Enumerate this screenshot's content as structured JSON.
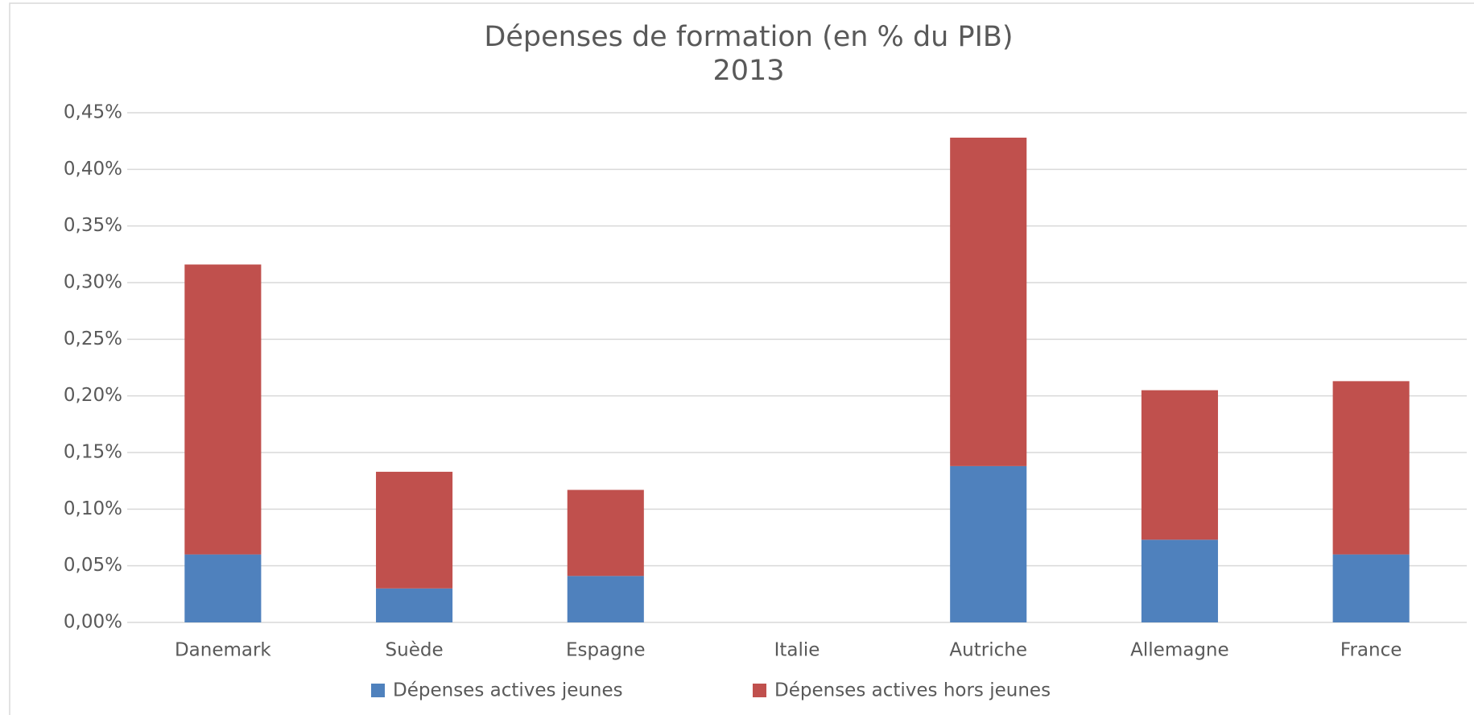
{
  "chart_data": {
    "type": "stacked_bar",
    "title": "Dépenses de formation (en % du PIB)",
    "subtitle": "2013",
    "categories": [
      "Danemark",
      "Suède",
      "Espagne",
      "Italie",
      "Autriche",
      "Allemagne",
      "France"
    ],
    "series": [
      {
        "name": "Dépenses actives jeunes",
        "color": "#4f81bd",
        "values": [
          0.06,
          0.03,
          0.041,
          null,
          0.138,
          0.073,
          0.06
        ]
      },
      {
        "name": "Dépenses actives hors jeunes",
        "color": "#c0504d",
        "values": [
          0.256,
          0.103,
          0.076,
          null,
          0.29,
          0.132,
          0.153
        ]
      }
    ],
    "ylim": [
      0,
      0.45
    ],
    "yticks": [
      {
        "value": 0,
        "label": "0,00%"
      },
      {
        "value": 0.05,
        "label": "0,05%"
      },
      {
        "value": 0.1,
        "label": "0,10%"
      },
      {
        "value": 0.15,
        "label": "0,15%"
      },
      {
        "value": 0.2,
        "label": "0,20%"
      },
      {
        "value": 0.25,
        "label": "0,25%"
      },
      {
        "value": 0.3,
        "label": "0,30%"
      },
      {
        "value": 0.35,
        "label": "0,35%"
      },
      {
        "value": 0.4,
        "label": "0,40%"
      },
      {
        "value": 0.45,
        "label": "0,45%"
      }
    ],
    "grid": true,
    "legend": "bottom"
  }
}
